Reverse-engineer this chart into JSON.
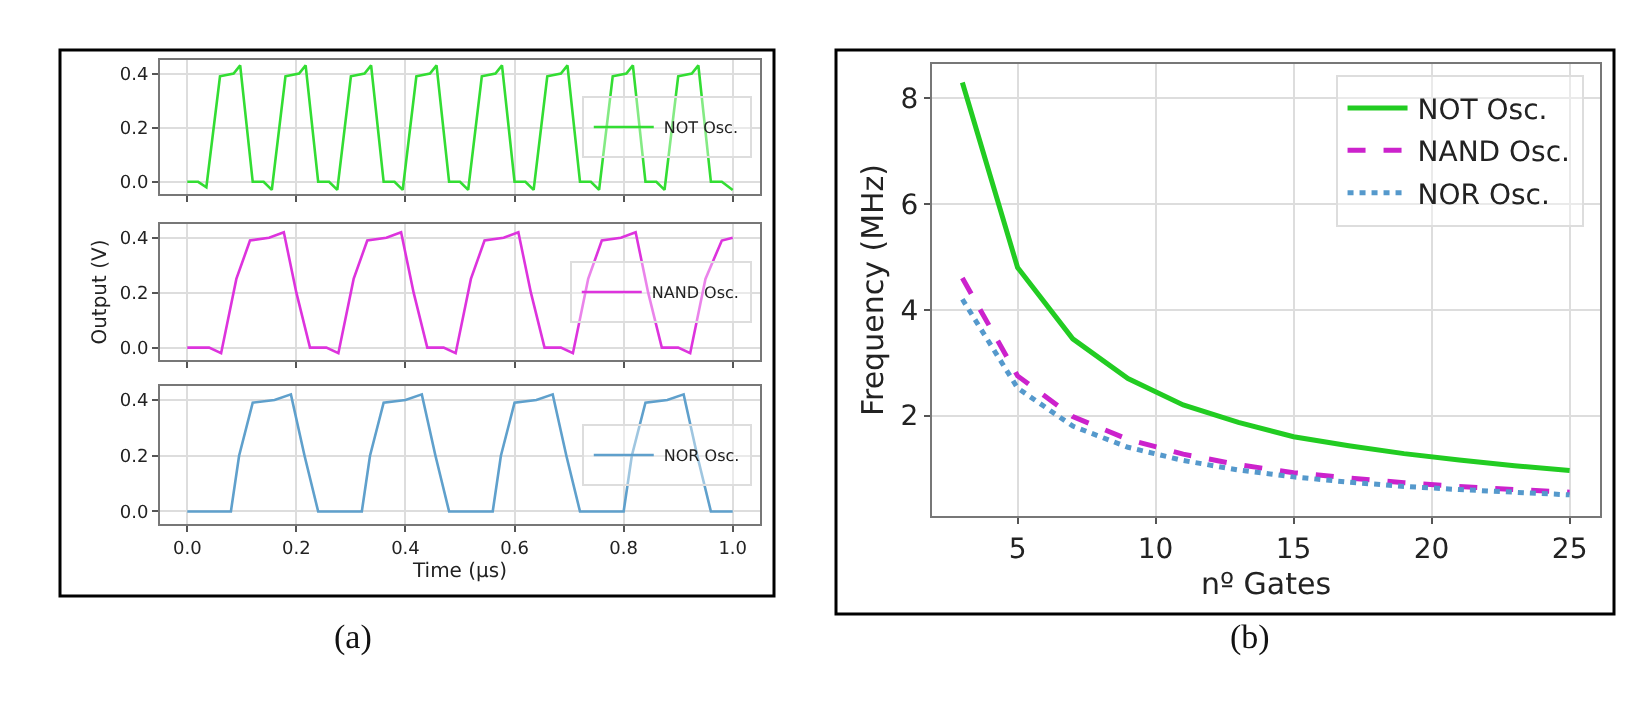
{
  "chart_data": [
    {
      "type": "line",
      "xlim": [
        -0.05,
        1.05
      ],
      "ylim": [
        -0.045,
        0.45
      ],
      "xticks": [
        0.0,
        0.2,
        0.4,
        0.6,
        0.8,
        1.0
      ],
      "yticks": [
        {
          "value": 0.0,
          "label": "0.0"
        },
        {
          "value": 0.2,
          "label": "0.2"
        },
        {
          "value": 0.4,
          "label": "0.4"
        }
      ],
      "grid": true,
      "legend": "right",
      "tick_labels": "y",
      "series": [
        {
          "name": "NOT Osc.",
          "color": "#33dd33",
          "line_style": "solid",
          "x": [
            0,
            0.02,
            0.035,
            0.06,
            0.085,
            0.097,
            0.12,
            0.14,
            0.155,
            0.18,
            0.205,
            0.217,
            0.24,
            0.26,
            0.275,
            0.3,
            0.325,
            0.337,
            0.36,
            0.38,
            0.395,
            0.42,
            0.445,
            0.457,
            0.48,
            0.5,
            0.515,
            0.54,
            0.565,
            0.577,
            0.6,
            0.62,
            0.635,
            0.66,
            0.685,
            0.697,
            0.72,
            0.74,
            0.755,
            0.78,
            0.805,
            0.817,
            0.84,
            0.86,
            0.875,
            0.9,
            0.925,
            0.937,
            0.96,
            0.98,
            1.0
          ],
          "values": [
            0,
            0,
            -0.02,
            0.39,
            0.4,
            0.43,
            0.0,
            0.0,
            -0.03,
            0.39,
            0.4,
            0.43,
            0.0,
            0.0,
            -0.03,
            0.39,
            0.4,
            0.43,
            0.0,
            0.0,
            -0.03,
            0.39,
            0.4,
            0.43,
            0.0,
            0.0,
            -0.03,
            0.39,
            0.4,
            0.43,
            0.0,
            0.0,
            -0.03,
            0.39,
            0.4,
            0.43,
            0.0,
            0.0,
            -0.03,
            0.39,
            0.4,
            0.43,
            0.0,
            0.0,
            -0.03,
            0.39,
            0.4,
            0.43,
            0.0,
            0.0,
            -0.03
          ]
        }
      ]
    },
    {
      "type": "line",
      "ylabel": "Output (V)",
      "xlim": [
        -0.05,
        1.05
      ],
      "ylim": [
        -0.045,
        0.45
      ],
      "xticks": [
        0.0,
        0.2,
        0.4,
        0.6,
        0.8,
        1.0
      ],
      "yticks": [
        {
          "value": 0.0,
          "label": "0.0"
        },
        {
          "value": 0.2,
          "label": "0.2"
        },
        {
          "value": 0.4,
          "label": "0.4"
        }
      ],
      "grid": true,
      "legend": "right",
      "tick_labels": "y",
      "series": [
        {
          "name": "NAND Osc.",
          "color": "#dd33dd",
          "line_style": "solid",
          "x": [
            0,
            0.04,
            0.062,
            0.09,
            0.115,
            0.15,
            0.177,
            0.2,
            0.225,
            0.255,
            0.277,
            0.305,
            0.33,
            0.365,
            0.392,
            0.415,
            0.44,
            0.47,
            0.492,
            0.52,
            0.545,
            0.58,
            0.607,
            0.63,
            0.655,
            0.685,
            0.707,
            0.735,
            0.76,
            0.795,
            0.822,
            0.845,
            0.87,
            0.9,
            0.922,
            0.95,
            0.98,
            1.0
          ],
          "values": [
            0,
            0,
            -0.02,
            0.25,
            0.39,
            0.4,
            0.42,
            0.2,
            0.0,
            0.0,
            -0.02,
            0.25,
            0.39,
            0.4,
            0.42,
            0.2,
            0.0,
            0.0,
            -0.02,
            0.25,
            0.39,
            0.4,
            0.42,
            0.2,
            0.0,
            0.0,
            -0.02,
            0.25,
            0.39,
            0.4,
            0.42,
            0.2,
            0.0,
            0.0,
            -0.02,
            0.25,
            0.39,
            0.4
          ]
        }
      ]
    },
    {
      "type": "line",
      "xlabel": "Time (μs)",
      "xlim": [
        -0.05,
        1.05
      ],
      "ylim": [
        -0.045,
        0.45
      ],
      "xticks": [
        {
          "value": 0.0,
          "label": "0.0"
        },
        0.2,
        0.4,
        0.6,
        0.8,
        {
          "value": 1.0,
          "label": "1.0"
        }
      ],
      "yticks": [
        {
          "value": 0.0,
          "label": "0.0"
        },
        0.2,
        0.4
      ],
      "grid": true,
      "legend": "right",
      "annotations": [
        "(a)"
      ],
      "series": [
        {
          "name": "NOR Osc.",
          "color": "#5fa0cc",
          "line_style": "solid",
          "x": [
            0,
            0.08,
            0.095,
            0.12,
            0.16,
            0.19,
            0.215,
            0.24,
            0.32,
            0.335,
            0.36,
            0.4,
            0.43,
            0.455,
            0.48,
            0.56,
            0.575,
            0.6,
            0.64,
            0.67,
            0.695,
            0.72,
            0.8,
            0.815,
            0.84,
            0.88,
            0.91,
            0.935,
            0.96,
            1.0
          ],
          "values": [
            0,
            0,
            0.2,
            0.39,
            0.4,
            0.42,
            0.2,
            0,
            0,
            0.2,
            0.39,
            0.4,
            0.42,
            0.2,
            0,
            0,
            0.2,
            0.39,
            0.4,
            0.42,
            0.2,
            0,
            0,
            0.2,
            0.39,
            0.4,
            0.42,
            0.2,
            0,
            0
          ]
        }
      ]
    },
    {
      "type": "line",
      "xlabel": "nº Gates",
      "ylabel": "Frequency (MHz)",
      "xlim": [
        1.9,
        26.1
      ],
      "ylim": [
        0.1,
        8.65
      ],
      "xticks": [
        5,
        10,
        15,
        20,
        25
      ],
      "yticks": [
        2,
        4,
        6,
        8
      ],
      "grid": true,
      "legend": "top right",
      "annotations": [
        "(b)"
      ],
      "x": [
        3,
        5,
        7,
        9,
        11,
        13,
        15,
        17,
        19,
        21,
        23,
        25
      ],
      "series": [
        {
          "name": "NOT Osc.",
          "color": "#22cc22",
          "line_style": "solid",
          "values": [
            8.3,
            4.8,
            3.45,
            2.7,
            2.2,
            1.87,
            1.6,
            1.43,
            1.28,
            1.16,
            1.05,
            0.96
          ]
        },
        {
          "name": "NAND Osc.",
          "color": "#cc22cc",
          "line_style": "dashed",
          "values": [
            4.6,
            2.75,
            1.98,
            1.55,
            1.27,
            1.07,
            0.92,
            0.82,
            0.73,
            0.66,
            0.6,
            0.55
          ]
        },
        {
          "name": "NOR Osc.",
          "color": "#5599cc",
          "line_style": "dotted",
          "values": [
            4.2,
            2.52,
            1.8,
            1.4,
            1.15,
            0.97,
            0.84,
            0.74,
            0.66,
            0.6,
            0.55,
            0.5
          ]
        }
      ]
    }
  ]
}
